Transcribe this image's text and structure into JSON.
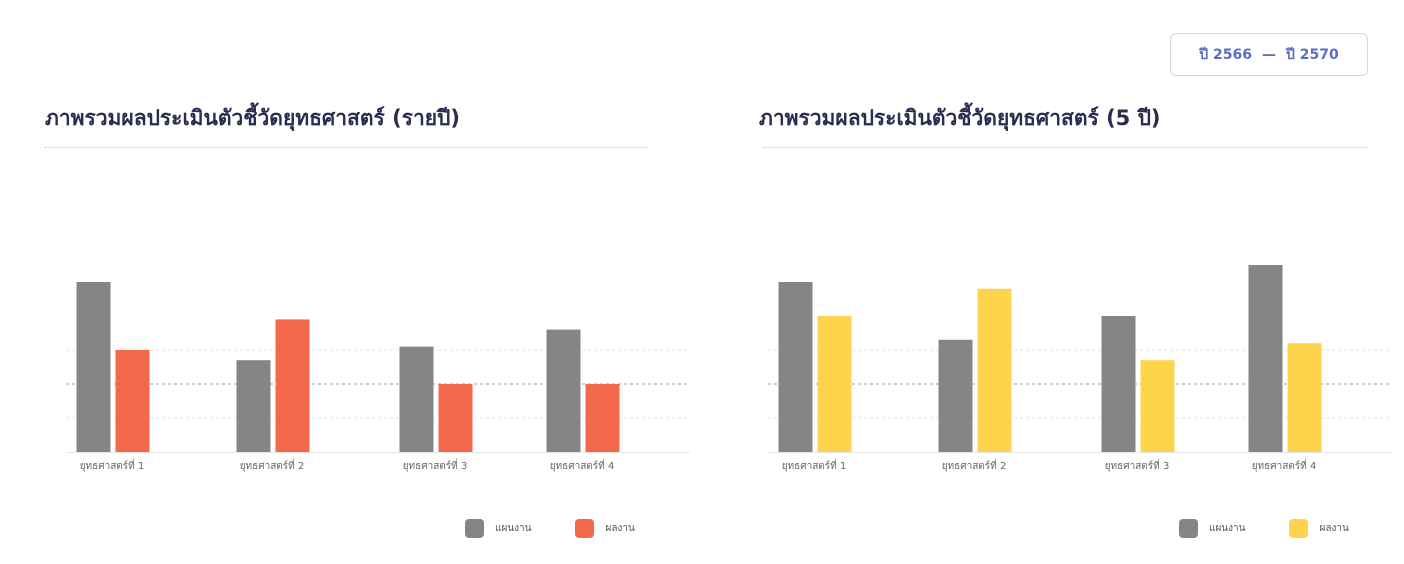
{
  "year_range": {
    "start": "ปี 2566",
    "separator": "—",
    "end": "ปี 2570"
  },
  "colors": {
    "plan": "#858585",
    "result_yearly": "#f4694c",
    "result_5y": "#ffd44d"
  },
  "legend": {
    "plan_label": "แผนงาน",
    "result_label": "ผลงาน"
  },
  "chart_data": [
    {
      "type": "bar",
      "title": "ภาพรวมผลประเมินตัวชี้วัดยุทธศาสตร์ (รายปี)",
      "xlabel": "",
      "ylabel": "",
      "categories": [
        "ยุทธศาสตร์ที่ 1",
        "ยุทธศาสตร์ที่ 2",
        "ยุทธศาสตร์ที่ 3",
        "ยุทธศาสตร์ที่ 4"
      ],
      "series": [
        {
          "name": "แผนงาน",
          "color": "#858585",
          "values": [
            5.0,
            2.7,
            3.1,
            3.6
          ]
        },
        {
          "name": "ผลงาน",
          "color": "#f4694c",
          "values": [
            3.0,
            3.9,
            2.0,
            2.0
          ]
        }
      ],
      "ylim": [
        0,
        6
      ],
      "grid": true,
      "legend_position": "bottom-right"
    },
    {
      "type": "bar",
      "title": "ภาพรวมผลประเมินตัวชี้วัดยุทธศาสตร์ (5 ปี)",
      "xlabel": "",
      "ylabel": "",
      "categories": [
        "ยุทธศาสตร์ที่ 1",
        "ยุทธศาสตร์ที่ 2",
        "ยุทธศาสตร์ที่ 3",
        "ยุทธศาสตร์ที่ 4"
      ],
      "series": [
        {
          "name": "แผนงาน",
          "color": "#858585",
          "values": [
            5.0,
            3.3,
            4.0,
            5.5
          ]
        },
        {
          "name": "ผลงาน",
          "color": "#ffd44d",
          "values": [
            4.0,
            4.8,
            2.7,
            3.2
          ]
        }
      ],
      "ylim": [
        0,
        6
      ],
      "grid": true,
      "legend_position": "bottom-right"
    }
  ]
}
